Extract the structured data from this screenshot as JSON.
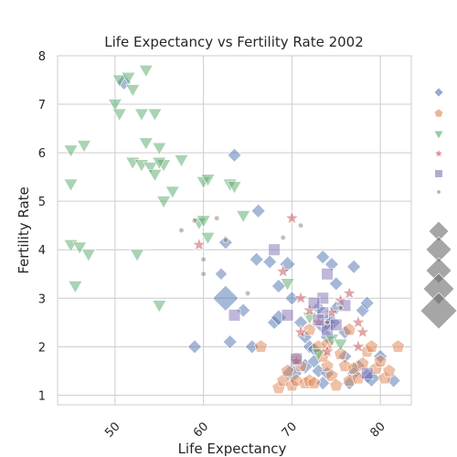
{
  "chart_data": {
    "type": "scatter",
    "title": "Life Expectancy vs Fertility Rate 2002",
    "xlabel": "Life Expectancy",
    "ylabel": "Fertility Rate",
    "xlim": [
      43.5,
      83.5
    ],
    "ylim": [
      0.8,
      8.0
    ],
    "xticks": [
      50,
      60,
      70,
      80
    ],
    "yticks": [
      1,
      2,
      3,
      4,
      5,
      6,
      7,
      8
    ],
    "grid": true,
    "legend_placement": "right",
    "colors": {
      "blue": "#4c72b0",
      "orange": "#dd8452",
      "green": "#55a868",
      "red": "#c44e52",
      "purple": "#8172b3",
      "brown": "#937860",
      "size_legend": "#6b6b6b"
    },
    "series": [
      {
        "marker": "diamond",
        "color": "#4c72b0",
        "points": [
          [
            51.0,
            7.45,
            1.2
          ],
          [
            63.5,
            5.95,
            1.0
          ],
          [
            66.2,
            4.8,
            1.0
          ],
          [
            62.5,
            4.15,
            1.0
          ],
          [
            62.0,
            3.5,
            0.8
          ],
          [
            62.5,
            3.0,
            3.5
          ],
          [
            64.5,
            2.75,
            1.0
          ],
          [
            66.0,
            3.8,
            1.0
          ],
          [
            67.5,
            3.75,
            1.0
          ],
          [
            68.5,
            3.25,
            1.0
          ],
          [
            69.5,
            3.7,
            1.3
          ],
          [
            68.0,
            2.5,
            1.0
          ],
          [
            68.5,
            2.6,
            1.3
          ],
          [
            70.0,
            3.0,
            1.0
          ],
          [
            71.0,
            2.5,
            1.0
          ],
          [
            71.5,
            2.2,
            1.0
          ],
          [
            72.0,
            2.0,
            1.0
          ],
          [
            72.5,
            1.95,
            1.0
          ],
          [
            73.5,
            3.85,
            1.0
          ],
          [
            73.0,
            2.8,
            1.0
          ],
          [
            74.0,
            2.5,
            1.3
          ],
          [
            73.5,
            2.4,
            1.0
          ],
          [
            74.0,
            2.2,
            1.0
          ],
          [
            74.5,
            2.5,
            1.6
          ],
          [
            75.0,
            3.3,
            1.0
          ],
          [
            75.0,
            2.8,
            1.0
          ],
          [
            76.0,
            2.3,
            1.0
          ],
          [
            74.5,
            3.7,
            1.0
          ],
          [
            77.0,
            3.65,
            1.0
          ],
          [
            78.0,
            2.75,
            1.0
          ],
          [
            78.5,
            2.9,
            1.0
          ],
          [
            76.0,
            1.8,
            1.0
          ],
          [
            77.5,
            1.6,
            1.0
          ],
          [
            78.5,
            1.4,
            1.3
          ],
          [
            79.0,
            1.35,
            1.6
          ],
          [
            80.0,
            1.8,
            1.0
          ],
          [
            81.5,
            1.3,
            1.0
          ],
          [
            70.0,
            1.45,
            2.2
          ],
          [
            71.5,
            1.6,
            1.3
          ],
          [
            72.5,
            1.7,
            1.0
          ],
          [
            73.0,
            1.5,
            1.0
          ],
          [
            73.5,
            1.25,
            1.0
          ],
          [
            74.0,
            1.45,
            1.0
          ],
          [
            76.5,
            1.25,
            1.0
          ],
          [
            77.0,
            1.45,
            1.0
          ],
          [
            59.0,
            2.0,
            1.0
          ],
          [
            63.0,
            2.1,
            1.0
          ],
          [
            65.5,
            2.0,
            1.0
          ]
        ]
      },
      {
        "marker": "pentagon",
        "color": "#dd8452",
        "points": [
          [
            66.5,
            2.0,
            1.0
          ],
          [
            68.5,
            1.15,
            1.0
          ],
          [
            69.0,
            1.3,
            1.0
          ],
          [
            69.5,
            1.5,
            1.0
          ],
          [
            70.0,
            1.2,
            1.0
          ],
          [
            70.5,
            1.3,
            1.0
          ],
          [
            71.0,
            1.6,
            1.0
          ],
          [
            71.5,
            1.25,
            1.0
          ],
          [
            72.0,
            1.3,
            1.0
          ],
          [
            72.5,
            1.25,
            1.0
          ],
          [
            73.0,
            2.0,
            1.0
          ],
          [
            74.0,
            1.6,
            1.0
          ],
          [
            74.5,
            1.4,
            1.0
          ],
          [
            75.0,
            1.2,
            1.0
          ],
          [
            75.5,
            1.85,
            1.0
          ],
          [
            76.0,
            1.6,
            1.0
          ],
          [
            76.5,
            1.3,
            1.0
          ],
          [
            77.0,
            1.55,
            1.0
          ],
          [
            77.5,
            1.35,
            1.0
          ],
          [
            78.0,
            1.65,
            1.0
          ],
          [
            78.5,
            1.9,
            1.0
          ],
          [
            79.0,
            2.0,
            1.0
          ],
          [
            79.5,
            1.55,
            1.0
          ],
          [
            80.0,
            1.7,
            1.0
          ],
          [
            80.5,
            1.35,
            1.0
          ],
          [
            81.0,
            1.5,
            1.0
          ],
          [
            82.0,
            2.0,
            1.0
          ],
          [
            73.5,
            1.8,
            1.0
          ],
          [
            76.5,
            2.35,
            1.0
          ],
          [
            70.5,
            1.75,
            1.0
          ],
          [
            72.0,
            2.35,
            1.0
          ],
          [
            74.0,
            2.05,
            1.0
          ]
        ]
      },
      {
        "marker": "triangle-down",
        "color": "#55a868",
        "points": [
          [
            50.5,
            7.5,
            1.0
          ],
          [
            51.5,
            7.55,
            1.0
          ],
          [
            52.0,
            7.3,
            1.0
          ],
          [
            53.5,
            7.7,
            1.0
          ],
          [
            50.0,
            7.0,
            1.0
          ],
          [
            50.5,
            6.8,
            1.0
          ],
          [
            53.0,
            6.8,
            1.0
          ],
          [
            54.5,
            6.8,
            1.0
          ],
          [
            53.5,
            6.2,
            1.0
          ],
          [
            55.0,
            6.1,
            1.0
          ],
          [
            45.0,
            6.05,
            1.0
          ],
          [
            46.5,
            6.15,
            1.0
          ],
          [
            52.0,
            5.8,
            1.0
          ],
          [
            53.0,
            5.75,
            1.0
          ],
          [
            54.0,
            5.7,
            1.0
          ],
          [
            54.5,
            5.55,
            1.0
          ],
          [
            55.5,
            5.75,
            1.0
          ],
          [
            57.5,
            5.85,
            1.0
          ],
          [
            55.0,
            5.8,
            1.0
          ],
          [
            45.0,
            5.35,
            1.0
          ],
          [
            56.5,
            5.2,
            1.0
          ],
          [
            55.5,
            5.0,
            1.0
          ],
          [
            60.0,
            5.4,
            1.0
          ],
          [
            60.5,
            5.45,
            1.0
          ],
          [
            63.0,
            5.35,
            1.0
          ],
          [
            63.5,
            5.3,
            1.0
          ],
          [
            59.5,
            4.55,
            1.0
          ],
          [
            60.0,
            4.6,
            1.0
          ],
          [
            60.5,
            4.25,
            1.0
          ],
          [
            64.5,
            4.7,
            1.0
          ],
          [
            45.0,
            4.1,
            1.0
          ],
          [
            46.0,
            4.05,
            1.0
          ],
          [
            47.0,
            3.9,
            1.0
          ],
          [
            52.5,
            3.9,
            1.0
          ],
          [
            45.5,
            3.25,
            1.0
          ],
          [
            55.0,
            2.85,
            1.0
          ],
          [
            69.5,
            3.3,
            1.0
          ],
          [
            72.0,
            2.6,
            1.0
          ],
          [
            74.5,
            2.15,
            1.0
          ],
          [
            75.5,
            2.05,
            1.0
          ],
          [
            73.0,
            1.85,
            1.0
          ]
        ]
      },
      {
        "marker": "star",
        "color": "#c44e52",
        "points": [
          [
            59.5,
            4.1,
            1.0
          ],
          [
            70.0,
            4.65,
            1.0
          ],
          [
            69.0,
            3.55,
            1.0
          ],
          [
            71.0,
            3.0,
            1.0
          ],
          [
            72.0,
            2.75,
            1.0
          ],
          [
            73.0,
            2.5,
            1.0
          ],
          [
            74.5,
            2.7,
            1.0
          ],
          [
            75.5,
            2.95,
            1.0
          ],
          [
            76.5,
            3.1,
            1.0
          ],
          [
            77.5,
            2.5,
            1.0
          ],
          [
            78.0,
            2.3,
            1.0
          ],
          [
            74.0,
            1.9,
            1.0
          ],
          [
            77.5,
            2.0,
            1.0
          ],
          [
            70.5,
            1.7,
            1.0
          ],
          [
            71.0,
            2.3,
            1.0
          ]
        ]
      },
      {
        "marker": "square",
        "color": "#8172b3",
        "points": [
          [
            68.0,
            4.0,
            1.0
          ],
          [
            63.5,
            2.65,
            1.0
          ],
          [
            69.5,
            2.65,
            1.0
          ],
          [
            73.5,
            3.0,
            1.0
          ],
          [
            74.0,
            3.5,
            1.0
          ],
          [
            73.5,
            2.7,
            1.0
          ],
          [
            74.0,
            2.35,
            1.0
          ],
          [
            75.0,
            2.45,
            1.0
          ],
          [
            73.0,
            2.55,
            1.0
          ],
          [
            76.0,
            2.85,
            1.0
          ],
          [
            72.5,
            2.9,
            1.0
          ],
          [
            78.5,
            1.45,
            1.0
          ],
          [
            70.5,
            1.75,
            1.0
          ]
        ]
      },
      {
        "marker": "dot",
        "color": "#937860",
        "points": [
          [
            57.5,
            4.4,
            1.0
          ],
          [
            59.0,
            4.6,
            1.0
          ],
          [
            61.5,
            4.65,
            1.0
          ],
          [
            62.5,
            4.2,
            1.0
          ],
          [
            60.0,
            3.8,
            1.0
          ],
          [
            60.0,
            3.5,
            1.0
          ],
          [
            65.0,
            3.1,
            1.0
          ],
          [
            69.0,
            4.25,
            1.0
          ],
          [
            71.0,
            4.5,
            1.0
          ],
          [
            74.0,
            2.5,
            1.0
          ],
          [
            75.5,
            2.8,
            1.0
          ]
        ]
      }
    ]
  }
}
